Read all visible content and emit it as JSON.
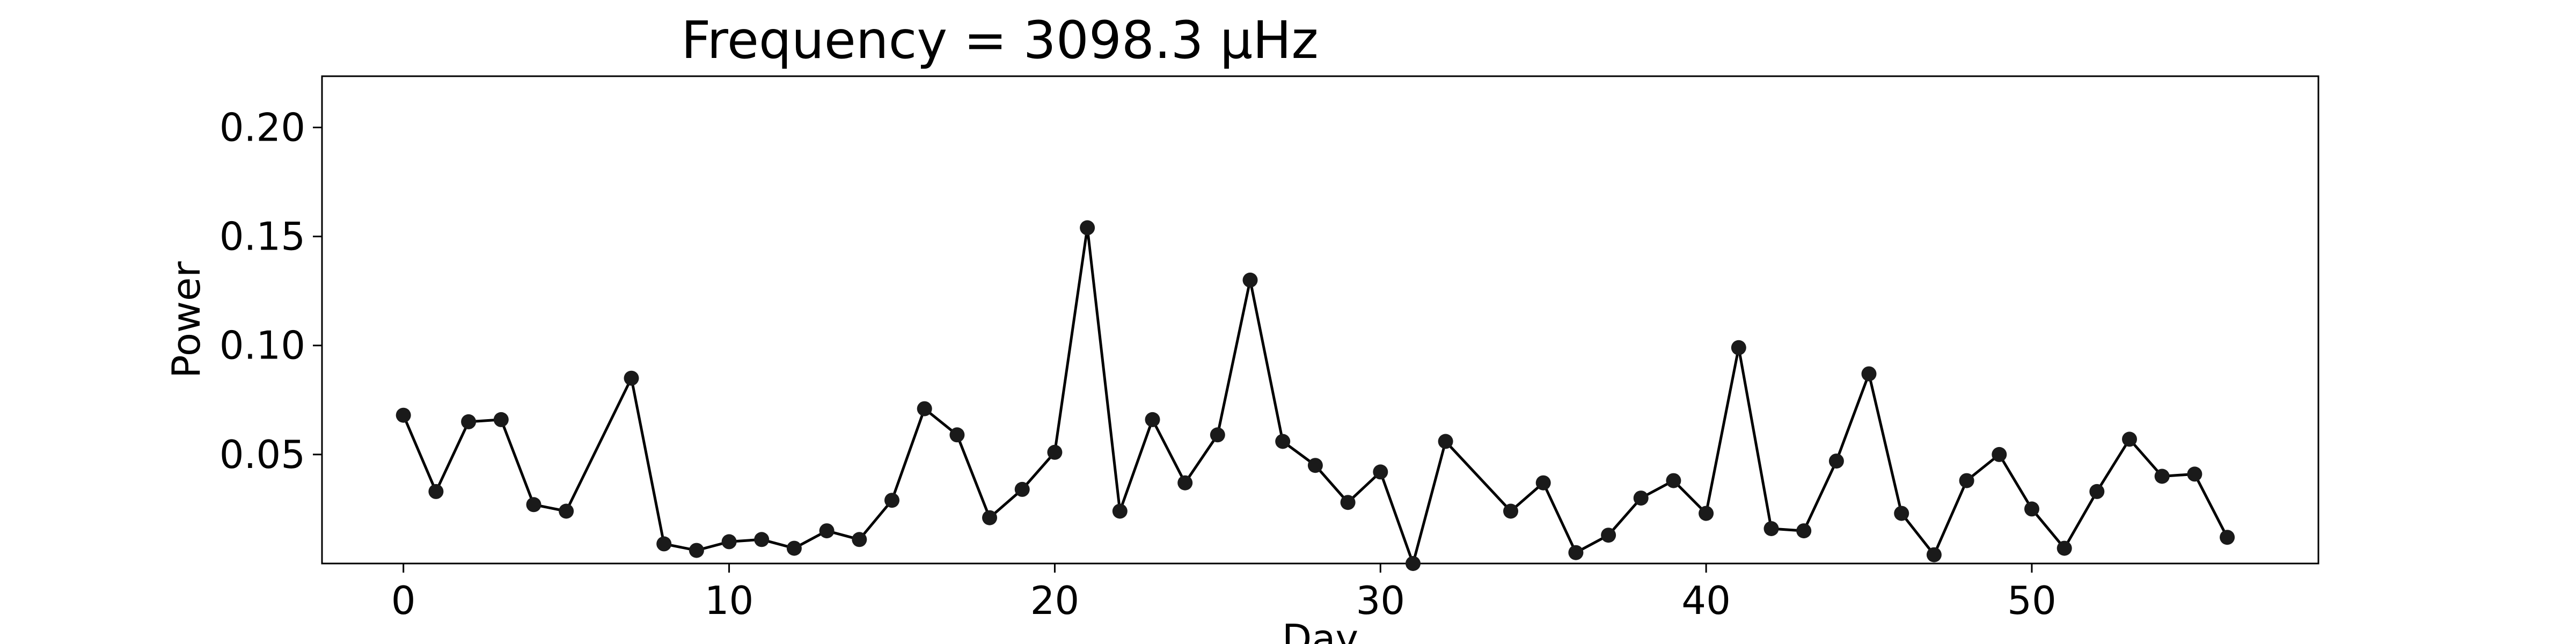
{
  "chart_data": {
    "type": "line",
    "title": "Frequency = 3098.3 μHz",
    "xlabel": "Day",
    "ylabel": "Power",
    "xlim": [
      -2.5,
      58.8
    ],
    "ylim": [
      0.0,
      0.2235
    ],
    "x_ticks": [
      0,
      10,
      20,
      30,
      40,
      50
    ],
    "y_ticks": [
      0.05,
      0.1,
      0.15,
      0.2
    ],
    "x_tick_labels": [
      "0",
      "10",
      "20",
      "30",
      "40",
      "50"
    ],
    "y_tick_labels": [
      "0.05",
      "0.10",
      "0.15",
      "0.20"
    ],
    "grid": false,
    "line_color": "#000000",
    "marker_color": "#1a1a1a",
    "series": [
      {
        "x": [
          0,
          1,
          2,
          3,
          4,
          5,
          7,
          8,
          9,
          10,
          11,
          12,
          13,
          14,
          15,
          16,
          17,
          18,
          19,
          20,
          21,
          22,
          23,
          24,
          25,
          26,
          27,
          28,
          29,
          30,
          31,
          32,
          34,
          35,
          36,
          37,
          38,
          39,
          40,
          41,
          42,
          43,
          44,
          45,
          46,
          47,
          48,
          49,
          50,
          51,
          52,
          53,
          54,
          55,
          56
        ],
        "values": [
          0.068,
          0.033,
          0.065,
          0.066,
          0.027,
          0.024,
          0.085,
          0.009,
          0.006,
          0.01,
          0.011,
          0.007,
          0.015,
          0.011,
          0.029,
          0.071,
          0.059,
          0.021,
          0.034,
          0.051,
          0.154,
          0.024,
          0.066,
          0.037,
          0.059,
          0.13,
          0.056,
          0.045,
          0.028,
          0.042,
          0.0,
          0.056,
          0.024,
          0.037,
          0.005,
          0.013,
          0.03,
          0.038,
          0.023,
          0.099,
          0.016,
          0.015,
          0.047,
          0.087,
          0.023,
          0.004,
          0.038,
          0.05,
          0.025,
          0.007,
          0.033,
          0.057,
          0.04,
          0.041,
          0.012
        ]
      }
    ]
  }
}
